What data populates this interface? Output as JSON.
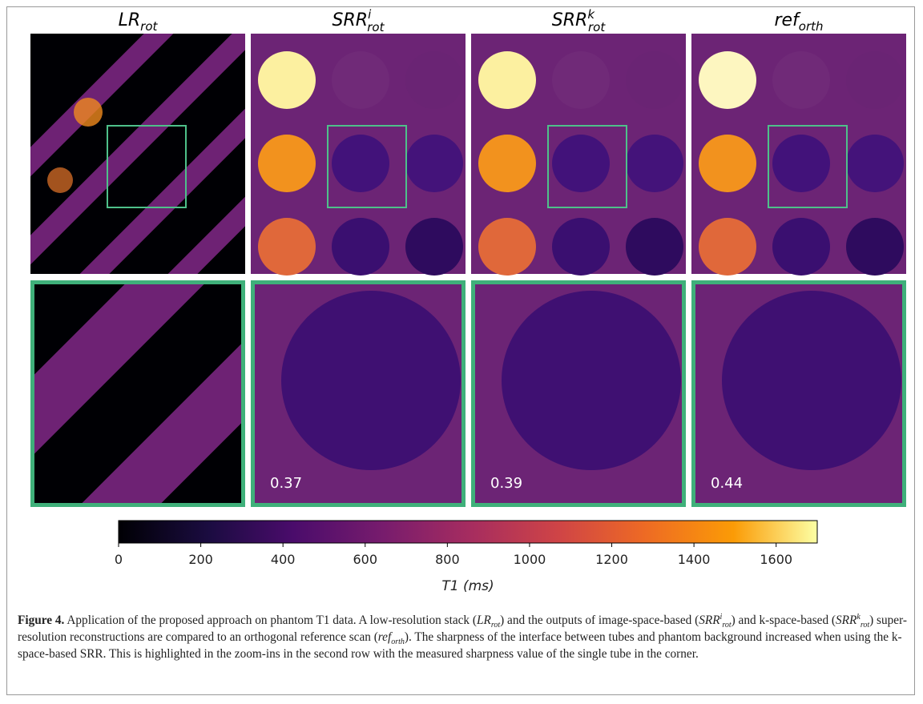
{
  "figure": {
    "panels": [
      {
        "title": "LR",
        "subscript": "rot"
      },
      {
        "title": "SRR",
        "superscript": "i",
        "subscript": "rot"
      },
      {
        "title": "SRR",
        "superscript": "k",
        "subscript": "rot"
      },
      {
        "title": "ref",
        "subscript": "orth"
      }
    ],
    "sharpness": [
      "0.37",
      "0.39",
      "0.44"
    ],
    "colorbar": {
      "label": "T1 (ms)",
      "lim": [
        0,
        1700
      ],
      "ticks": [
        0,
        200,
        400,
        600,
        800,
        1000,
        1200,
        1400,
        1600
      ]
    }
  },
  "caption": {
    "label": "Figure 4.",
    "text": [
      "Application of the proposed approach on phantom T1 data. A low-resolution stack (",
      ") and the outputs of image-space-based (",
      ") and k-space-based (",
      ") super-resolution reconstructions are compared to an orthogonal reference scan (",
      "). The sharpness of the interface between tubes and phantom background increased when using the k-space-based SRR. This is highlighted in the zoom-ins in the second row with the measured sharpness value of the single tube in the corner."
    ]
  }
}
